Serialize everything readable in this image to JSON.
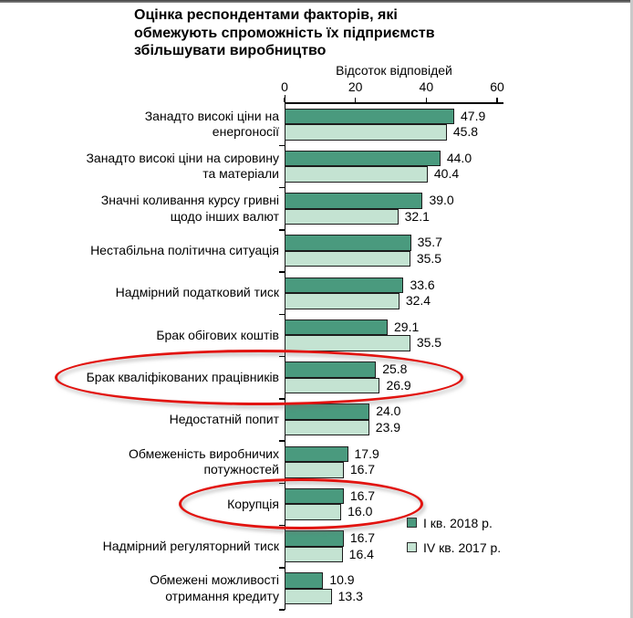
{
  "chart_data": {
    "type": "bar",
    "orientation": "horizontal",
    "title": "Оцінка респондентами факторів, які обмежують спроможність їх підприємств збільшувати виробництво",
    "title_lines": [
      "Оцінка респондентами факторів, які",
      "обмежують спроможність їх підприємств",
      "збільшувати виробництво"
    ],
    "axis_title": "Відсоток відповідей",
    "x_ticks": [
      0,
      20,
      40,
      60
    ],
    "xlim": [
      0,
      60
    ],
    "grid": false,
    "legend_position": "bottom-right",
    "categories": [
      "Занадто високі ціни на енергоносії",
      "Занадто високі ціни на сировину та матеріали",
      "Значні коливання курсу гривні щодо інших валют",
      "Нестабільна політична ситуація",
      "Надмірний податковий тиск",
      "Брак обігових коштів",
      "Брак кваліфікованих працівників",
      "Недостатній попит",
      "Обмеженість виробничих потужностей",
      "Корупція",
      "Надмірний регуляторний тиск",
      "Обмежені можливості отримання кредиту"
    ],
    "category_label_lines": [
      [
        "Занадто високі ціни на",
        "енергоносії"
      ],
      [
        "Занадто високі ціни на сировину",
        "та матеріали"
      ],
      [
        "Значні коливання курсу гривні",
        "щодо інших валют"
      ],
      [
        "Нестабільна політична ситуація"
      ],
      [
        "Надмірний податковий тиск"
      ],
      [
        "Брак обігових коштів"
      ],
      [
        "Брак кваліфікованих працівників"
      ],
      [
        "Недостатній попит"
      ],
      [
        "Обмеженість виробничих",
        "потужностей"
      ],
      [
        "Корупція"
      ],
      [
        "Надмірний регуляторний тиск"
      ],
      [
        "Обмежені можливості",
        "отримання кредиту"
      ]
    ],
    "series": [
      {
        "name": "І кв. 2018 р.",
        "color": "#4A9A7E",
        "values": [
          47.9,
          44.0,
          39.0,
          35.7,
          33.6,
          29.1,
          25.8,
          24.0,
          17.9,
          16.7,
          16.7,
          10.9
        ]
      },
      {
        "name": "IV кв. 2017 р.",
        "color": "#C4E3D2",
        "values": [
          45.8,
          40.4,
          32.1,
          35.5,
          32.4,
          35.5,
          26.9,
          23.9,
          16.7,
          16.0,
          16.4,
          13.3
        ]
      }
    ],
    "value_label_decimals": 1,
    "highlighted_categories": [
      "Брак кваліфікованих працівників",
      "Корупція"
    ],
    "highlight_color": "#E2130F"
  }
}
